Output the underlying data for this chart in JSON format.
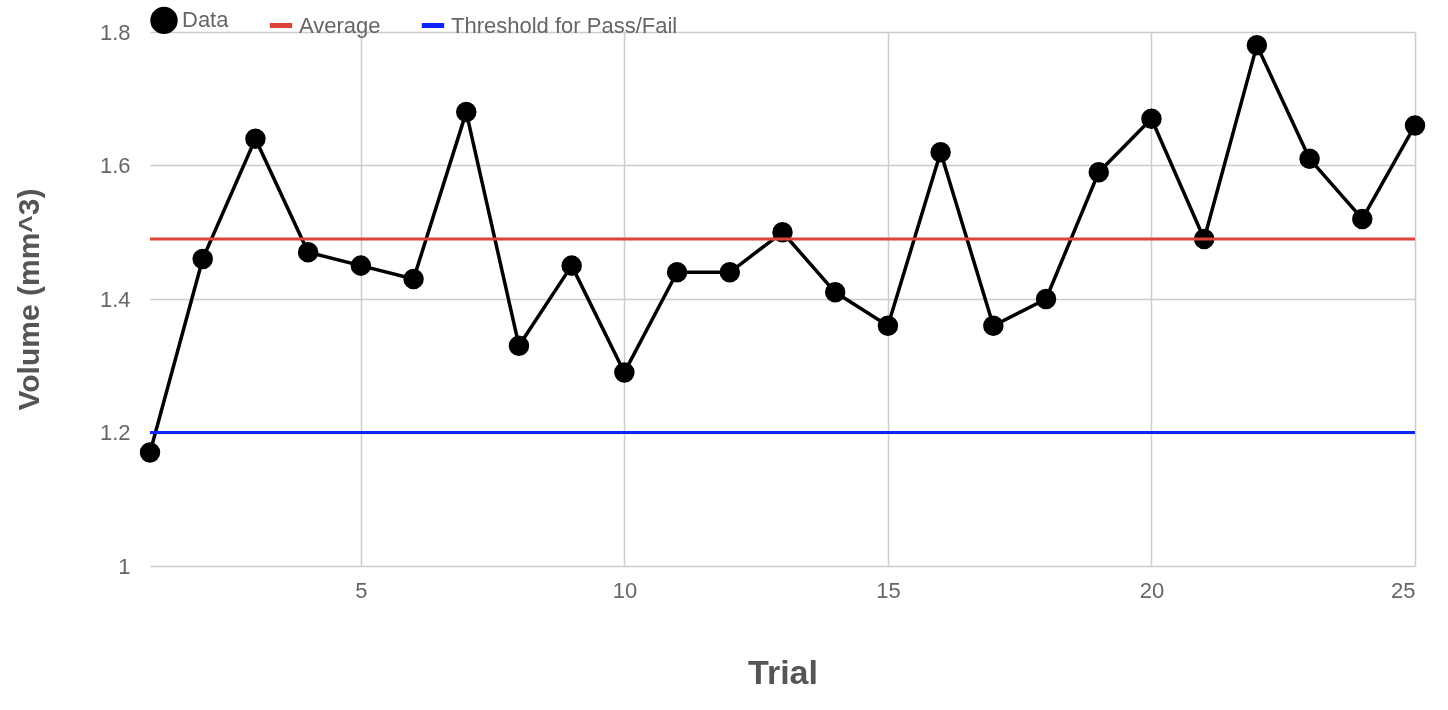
{
  "chart_data": {
    "type": "line",
    "xlabel": "Trial",
    "ylabel": "Volume (mm^3)",
    "x": [
      1,
      2,
      3,
      4,
      5,
      6,
      7,
      8,
      9,
      10,
      11,
      12,
      13,
      14,
      15,
      16,
      17,
      18,
      19,
      20,
      21,
      22,
      23,
      24,
      25
    ],
    "series": [
      {
        "name": "Data",
        "color": "#000000",
        "values": [
          1.17,
          1.46,
          1.64,
          1.47,
          1.45,
          1.43,
          1.68,
          1.33,
          1.45,
          1.29,
          1.44,
          1.44,
          1.5,
          1.41,
          1.36,
          1.62,
          1.36,
          1.4,
          1.59,
          1.67,
          1.49,
          1.78,
          1.61,
          1.52,
          1.66
        ]
      }
    ],
    "ref_lines": [
      {
        "axis": "y",
        "value": 1.49,
        "label": "Average",
        "color": "#db4437"
      },
      {
        "axis": "y",
        "value": 1.2,
        "label": "Threshold for Pass/Fail",
        "color": "#0b24fb"
      }
    ],
    "xlim": [
      1,
      25
    ],
    "xticks": [
      5,
      10,
      15,
      20,
      25
    ],
    "ylim": [
      1,
      1.8
    ],
    "yticks": [
      1,
      1.2,
      1.4,
      1.6,
      1.8
    ],
    "grid": true,
    "legend": "top",
    "marker": "circle",
    "line_style": "solid"
  }
}
